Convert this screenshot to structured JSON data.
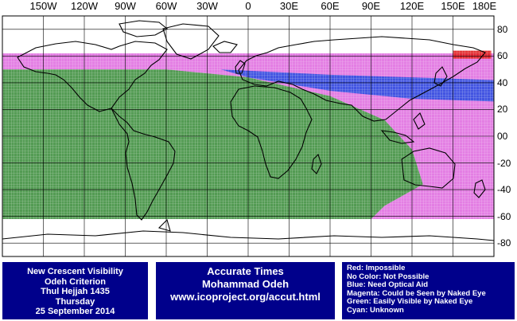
{
  "map": {
    "longitude_labels": [
      "150W",
      "120W",
      "90W",
      "60W",
      "30W",
      "0",
      "30E",
      "60E",
      "90E",
      "120E",
      "150E",
      "180E"
    ],
    "latitude_labels": [
      "80",
      "60",
      "40",
      "20",
      "00",
      "-20",
      "-40",
      "-60",
      "-80"
    ],
    "zones": [
      {
        "name": "Red",
        "color": "#e02020",
        "lat_top": 64,
        "lat_bottom": 58,
        "lon_west": 150,
        "lon_east": 178
      },
      {
        "name": "Blue",
        "color": "#3050e0",
        "lat_top": 50,
        "lat_bottom": 26,
        "lon_west": -20,
        "lon_east": 180
      },
      {
        "name": "Magenta",
        "color": "#e070e0",
        "lat_top": 62,
        "lat_bottom": 26,
        "lon_west": -180,
        "lon_east": 180
      },
      {
        "name": "Green",
        "color": "#409040",
        "lat_top": 50,
        "lat_bottom": -62,
        "lon_west": -180,
        "lon_east": 128
      }
    ]
  },
  "panels": {
    "left": [
      "New Crescent Visibility",
      "Odeh Criterion",
      "Thul Hejjah 1435",
      "Thursday",
      "25 September 2014"
    ],
    "middle": [
      "Accurate Times",
      "Mohammad Odeh",
      "www.icoproject.org/accut.html"
    ],
    "right": [
      "Red: Impossible",
      "No Color: Not Possible",
      "Blue: Need Optical Aid",
      "Magenta: Could be Seen by Naked Eye",
      "Green: Easily Visible by Naked Eye",
      "Cyan: Unknown"
    ]
  },
  "colors": {
    "panel_bg": "#00008b",
    "panel_text": "#ffffff"
  }
}
